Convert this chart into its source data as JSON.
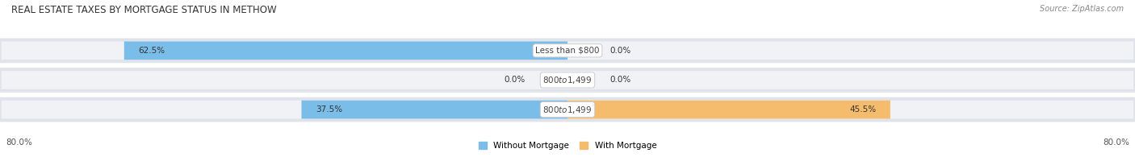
{
  "title": "Real Estate Taxes by Mortgage Status in Methow",
  "source": "Source: ZipAtlas.com",
  "rows": [
    {
      "label": "Less than $800",
      "without_mortgage": 62.5,
      "with_mortgage": 0.0
    },
    {
      "label": "$800 to $1,499",
      "without_mortgage": 0.0,
      "with_mortgage": 0.0
    },
    {
      "label": "$800 to $1,499",
      "without_mortgage": 37.5,
      "with_mortgage": 45.5
    }
  ],
  "x_max": 80.0,
  "blue_color": "#7abde8",
  "orange_color": "#f5bc6e",
  "label_bg_color": "#ffffff",
  "row_bg_color": "#e0e4ea",
  "row_bg_color_light": "#eaedf2",
  "bar_height": 0.62,
  "legend_without": "Without Mortgage",
  "legend_with": "With Mortgage",
  "axis_tick_left": "80.0%",
  "axis_tick_right": "80.0%",
  "title_fontsize": 8.5,
  "label_fontsize": 7.5,
  "value_fontsize": 7.5,
  "source_fontsize": 7.0
}
